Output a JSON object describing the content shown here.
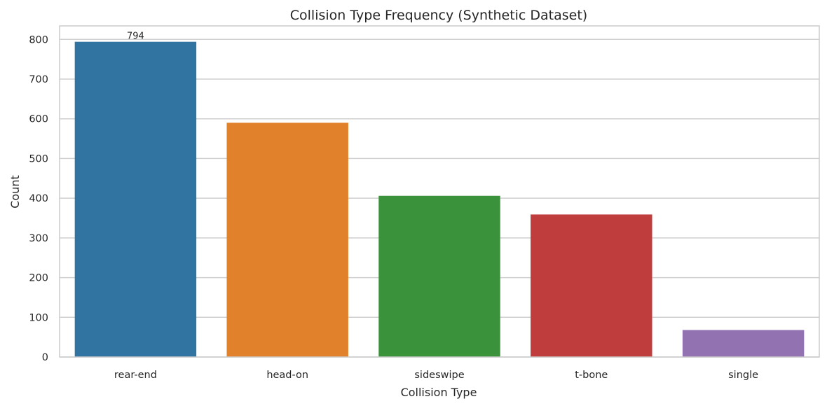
{
  "chart_data": {
    "type": "bar",
    "title": "Collision Type Frequency (Synthetic Dataset)",
    "xlabel": "Collision Type",
    "ylabel": "Count",
    "categories": [
      "rear-end",
      "head-on",
      "sideswipe",
      "t-bone",
      "single"
    ],
    "values": [
      794,
      590,
      406,
      359,
      68
    ],
    "colors": [
      "#3274a1",
      "#e1812c",
      "#3a923a",
      "#c03d3e",
      "#9372b2"
    ],
    "ylim": [
      0,
      834
    ],
    "yticks": [
      "0",
      "100",
      "200",
      "300",
      "400",
      "500",
      "600",
      "700",
      "800"
    ],
    "data_labels": [
      "794",
      "",
      "",
      "",
      ""
    ],
    "grid": true,
    "legend": "none"
  }
}
